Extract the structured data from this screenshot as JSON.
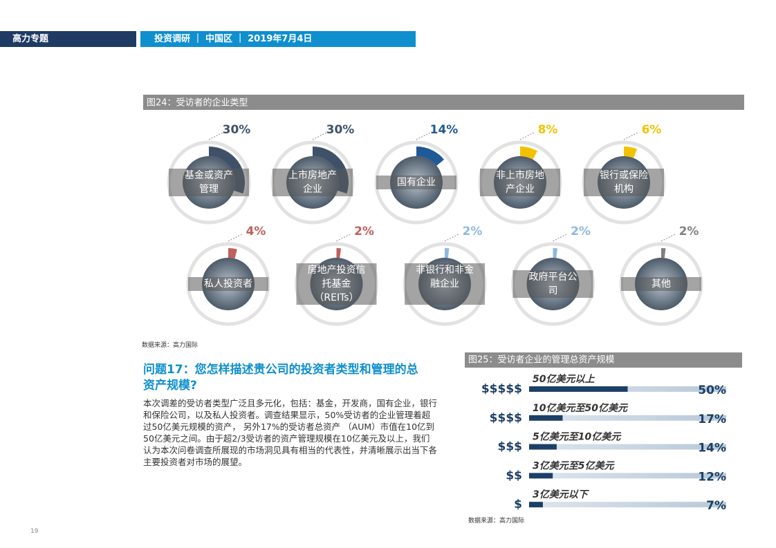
{
  "header": {
    "left": "高力专题",
    "right": "投资调研 ｜ 中国区 ｜ 2019年7月4日"
  },
  "chart_data": [
    {
      "type": "donut",
      "title": "图24：受访者的企业类型",
      "categories": [
        "基金或资产管理",
        "上市房地产企业",
        "国有企业",
        "非上市房地产企业",
        "银行或保险机构",
        "私人投资者",
        "房地产投资信托基金（REITs）",
        "非银行和非金融企业",
        "政府平台公司",
        "其他"
      ],
      "values": [
        30,
        30,
        14,
        8,
        6,
        4,
        2,
        2,
        2,
        2
      ],
      "value_labels": [
        "30%",
        "30%",
        "14%",
        "8%",
        "6%",
        "4%",
        "2%",
        "2%",
        "2%",
        "2%"
      ],
      "colors": [
        "#3e5169",
        "#3e5169",
        "#1f5a96",
        "#f2c200",
        "#f2c200",
        "#c0605e",
        "#c0605e",
        "#8fb8e0",
        "#8fb8e0",
        "#808080"
      ]
    },
    {
      "type": "bar",
      "title": "图25：受访者企业的管理总资产规模",
      "categories": [
        "50亿美元以上",
        "10亿美元至50亿美元",
        "5亿美元至10亿美元",
        "3亿美元至5亿美元",
        "3亿美元以下"
      ],
      "icons": [
        "$$$$$",
        "$$$$",
        "$$$",
        "$$",
        "$"
      ],
      "values": [
        50,
        17,
        14,
        12,
        7
      ],
      "value_labels": [
        "50%",
        "17%",
        "14%",
        "12%",
        "7%"
      ],
      "color": "#1c3f66"
    }
  ],
  "source_1": "数据来源：高力国际",
  "source_2": "数据来源：高力国际",
  "question": "问题17：您怎样描述贵公司的投资者类型和管理的总资产规模?",
  "body": "本次调差的受访者类型广泛且多元化，包括：基金，开发商，国有企业，银行和保险公司，以及私人投资者。调查结果显示，50%受访者的企业管理着超过50亿美元规模的资产， 另外17%的受访者总资产 （AUM）市值在10亿到50亿美元之间。由于超2/3受访者的资产管理规模在10亿美元及以上，我们认为本次问卷调查所展现的市场洞见具有相当的代表性，并清晰展示出当下各主要投资者对市场的展望。",
  "page_number": "19"
}
